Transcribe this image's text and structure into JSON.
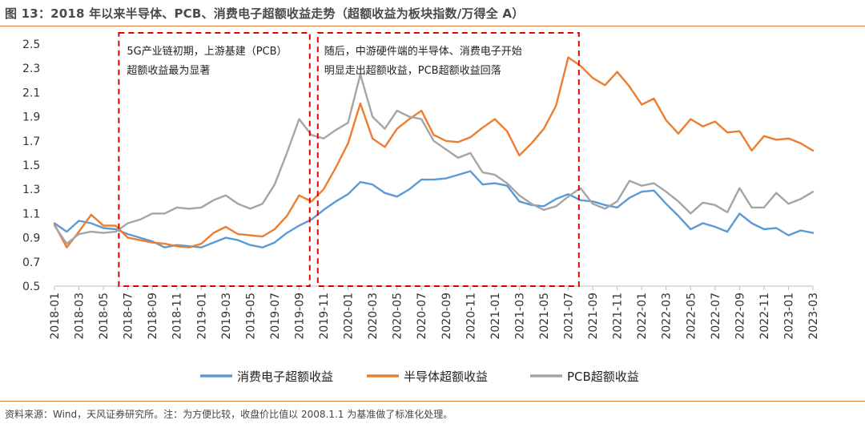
{
  "header": {
    "title": "图 13：2018 年以来半导体、PCB、消费电子超额收益走势（超额收益为板块指数/万得全 A）"
  },
  "footer": {
    "source": "资料来源：Wind，天风证券研究所。注：为方便比较，收盘价比值以 2008.1.1 为基准做了标准化处理。"
  },
  "chart_data": {
    "type": "line",
    "title": "图 13：2018 年以来半导体、PCB、消费电子超额收益走势（超额收益为板块指数/万得全 A）",
    "xlabel": "",
    "ylabel": "",
    "ylim": [
      0.5,
      2.5
    ],
    "yticks": [
      "2.5",
      "2.3",
      "2.1",
      "1.9",
      "1.7",
      "1.5",
      "1.3",
      "1.1",
      "0.9",
      "0.7",
      "0.5"
    ],
    "xticks": [
      "2018-01",
      "2018-03",
      "2018-05",
      "2018-07",
      "2018-09",
      "2018-11",
      "2019-01",
      "2019-03",
      "2019-05",
      "2019-07",
      "2019-09",
      "2019-11",
      "2020-01",
      "2020-03",
      "2020-05",
      "2020-07",
      "2020-09",
      "2020-11",
      "2021-01",
      "2021-03",
      "2021-05",
      "2021-07",
      "2021-09",
      "2021-11",
      "2022-01",
      "2022-03",
      "2022-05",
      "2022-07",
      "2022-09",
      "2022-11",
      "2023-01",
      "2023-03"
    ],
    "grid": false,
    "legend_position": "bottom",
    "annotations": [
      {
        "lines": [
          "5G产业链初期，上游基建（PCB）",
          "超额收益最为显著"
        ],
        "box": [
          "2018-06",
          "2019-10"
        ]
      },
      {
        "lines": [
          "随后，中游硬件端的半导体、消费电子开始",
          "明显走出超额收益，PCB超额收益回落"
        ],
        "box": [
          "2019-10",
          "2021-08"
        ]
      }
    ],
    "series": [
      {
        "name": "消费电子超额收益",
        "color": "#5b9bd5",
        "points": [
          [
            "2018-01",
            1.02
          ],
          [
            "2018-02",
            0.95
          ],
          [
            "2018-03",
            1.04
          ],
          [
            "2018-04",
            1.02
          ],
          [
            "2018-05",
            0.98
          ],
          [
            "2018-06",
            0.97
          ],
          [
            "2018-07",
            0.93
          ],
          [
            "2018-08",
            0.9
          ],
          [
            "2018-09",
            0.87
          ],
          [
            "2018-10",
            0.82
          ],
          [
            "2018-11",
            0.84
          ],
          [
            "2018-12",
            0.83
          ],
          [
            "2019-01",
            0.82
          ],
          [
            "2019-02",
            0.86
          ],
          [
            "2019-03",
            0.9
          ],
          [
            "2019-04",
            0.88
          ],
          [
            "2019-05",
            0.84
          ],
          [
            "2019-06",
            0.82
          ],
          [
            "2019-07",
            0.86
          ],
          [
            "2019-08",
            0.94
          ],
          [
            "2019-09",
            1.0
          ],
          [
            "2019-10",
            1.05
          ],
          [
            "2019-11",
            1.13
          ],
          [
            "2019-12",
            1.2
          ],
          [
            "2020-01",
            1.26
          ],
          [
            "2020-02",
            1.36
          ],
          [
            "2020-03",
            1.34
          ],
          [
            "2020-04",
            1.27
          ],
          [
            "2020-05",
            1.24
          ],
          [
            "2020-06",
            1.3
          ],
          [
            "2020-07",
            1.38
          ],
          [
            "2020-08",
            1.38
          ],
          [
            "2020-09",
            1.39
          ],
          [
            "2020-10",
            1.42
          ],
          [
            "2020-11",
            1.45
          ],
          [
            "2020-12",
            1.34
          ],
          [
            "2021-01",
            1.35
          ],
          [
            "2021-02",
            1.33
          ],
          [
            "2021-03",
            1.2
          ],
          [
            "2021-04",
            1.17
          ],
          [
            "2021-05",
            1.16
          ],
          [
            "2021-06",
            1.22
          ],
          [
            "2021-07",
            1.26
          ],
          [
            "2021-08",
            1.21
          ],
          [
            "2021-09",
            1.2
          ],
          [
            "2021-10",
            1.17
          ],
          [
            "2021-11",
            1.15
          ],
          [
            "2021-12",
            1.23
          ],
          [
            "2022-01",
            1.28
          ],
          [
            "2022-02",
            1.29
          ],
          [
            "2022-03",
            1.18
          ],
          [
            "2022-04",
            1.08
          ],
          [
            "2022-05",
            0.97
          ],
          [
            "2022-06",
            1.02
          ],
          [
            "2022-07",
            0.99
          ],
          [
            "2022-08",
            0.95
          ],
          [
            "2022-09",
            1.1
          ],
          [
            "2022-10",
            1.02
          ],
          [
            "2022-11",
            0.97
          ],
          [
            "2022-12",
            0.98
          ],
          [
            "2023-01",
            0.92
          ],
          [
            "2023-02",
            0.96
          ],
          [
            "2023-03",
            0.94
          ]
        ]
      },
      {
        "name": "半导体超额收益",
        "color": "#ed7d31",
        "points": [
          [
            "2018-01",
            1.01
          ],
          [
            "2018-02",
            0.82
          ],
          [
            "2018-03",
            0.95
          ],
          [
            "2018-04",
            1.09
          ],
          [
            "2018-05",
            1.0
          ],
          [
            "2018-06",
            1.0
          ],
          [
            "2018-07",
            0.9
          ],
          [
            "2018-08",
            0.88
          ],
          [
            "2018-09",
            0.86
          ],
          [
            "2018-10",
            0.85
          ],
          [
            "2018-11",
            0.83
          ],
          [
            "2018-12",
            0.82
          ],
          [
            "2019-01",
            0.85
          ],
          [
            "2019-02",
            0.94
          ],
          [
            "2019-03",
            0.99
          ],
          [
            "2019-04",
            0.93
          ],
          [
            "2019-05",
            0.92
          ],
          [
            "2019-06",
            0.91
          ],
          [
            "2019-07",
            0.97
          ],
          [
            "2019-08",
            1.08
          ],
          [
            "2019-09",
            1.25
          ],
          [
            "2019-10",
            1.2
          ],
          [
            "2019-11",
            1.3
          ],
          [
            "2019-12",
            1.48
          ],
          [
            "2020-01",
            1.68
          ],
          [
            "2020-02",
            2.01
          ],
          [
            "2020-03",
            1.72
          ],
          [
            "2020-04",
            1.65
          ],
          [
            "2020-05",
            1.8
          ],
          [
            "2020-06",
            1.88
          ],
          [
            "2020-07",
            1.95
          ],
          [
            "2020-08",
            1.75
          ],
          [
            "2020-09",
            1.7
          ],
          [
            "2020-10",
            1.69
          ],
          [
            "2020-11",
            1.73
          ],
          [
            "2020-12",
            1.81
          ],
          [
            "2021-01",
            1.88
          ],
          [
            "2021-02",
            1.78
          ],
          [
            "2021-03",
            1.58
          ],
          [
            "2021-04",
            1.68
          ],
          [
            "2021-05",
            1.8
          ],
          [
            "2021-06",
            1.99
          ],
          [
            "2021-07",
            2.39
          ],
          [
            "2021-08",
            2.32
          ],
          [
            "2021-09",
            2.22
          ],
          [
            "2021-10",
            2.16
          ],
          [
            "2021-11",
            2.27
          ],
          [
            "2021-12",
            2.15
          ],
          [
            "2022-01",
            2.0
          ],
          [
            "2022-02",
            2.05
          ],
          [
            "2022-03",
            1.87
          ],
          [
            "2022-04",
            1.76
          ],
          [
            "2022-05",
            1.88
          ],
          [
            "2022-06",
            1.82
          ],
          [
            "2022-07",
            1.86
          ],
          [
            "2022-08",
            1.77
          ],
          [
            "2022-09",
            1.78
          ],
          [
            "2022-10",
            1.62
          ],
          [
            "2022-11",
            1.74
          ],
          [
            "2022-12",
            1.71
          ],
          [
            "2023-01",
            1.72
          ],
          [
            "2023-02",
            1.68
          ],
          [
            "2023-03",
            1.62
          ]
        ]
      },
      {
        "name": "PCB超额收益",
        "color": "#a5a5a5",
        "points": [
          [
            "2018-01",
            1.0
          ],
          [
            "2018-02",
            0.85
          ],
          [
            "2018-03",
            0.93
          ],
          [
            "2018-04",
            0.95
          ],
          [
            "2018-05",
            0.94
          ],
          [
            "2018-06",
            0.95
          ],
          [
            "2018-07",
            1.02
          ],
          [
            "2018-08",
            1.05
          ],
          [
            "2018-09",
            1.1
          ],
          [
            "2018-10",
            1.1
          ],
          [
            "2018-11",
            1.15
          ],
          [
            "2018-12",
            1.14
          ],
          [
            "2019-01",
            1.15
          ],
          [
            "2019-02",
            1.21
          ],
          [
            "2019-03",
            1.25
          ],
          [
            "2019-04",
            1.18
          ],
          [
            "2019-05",
            1.14
          ],
          [
            "2019-06",
            1.18
          ],
          [
            "2019-07",
            1.34
          ],
          [
            "2019-08",
            1.6
          ],
          [
            "2019-09",
            1.88
          ],
          [
            "2019-10",
            1.75
          ],
          [
            "2019-11",
            1.72
          ],
          [
            "2019-12",
            1.79
          ],
          [
            "2020-01",
            1.85
          ],
          [
            "2020-02",
            2.25
          ],
          [
            "2020-03",
            1.9
          ],
          [
            "2020-04",
            1.8
          ],
          [
            "2020-05",
            1.95
          ],
          [
            "2020-06",
            1.9
          ],
          [
            "2020-07",
            1.88
          ],
          [
            "2020-08",
            1.7
          ],
          [
            "2020-09",
            1.63
          ],
          [
            "2020-10",
            1.56
          ],
          [
            "2020-11",
            1.6
          ],
          [
            "2020-12",
            1.44
          ],
          [
            "2021-01",
            1.42
          ],
          [
            "2021-02",
            1.35
          ],
          [
            "2021-03",
            1.25
          ],
          [
            "2021-04",
            1.18
          ],
          [
            "2021-05",
            1.13
          ],
          [
            "2021-06",
            1.16
          ],
          [
            "2021-07",
            1.24
          ],
          [
            "2021-08",
            1.31
          ],
          [
            "2021-09",
            1.18
          ],
          [
            "2021-10",
            1.14
          ],
          [
            "2021-11",
            1.2
          ],
          [
            "2021-12",
            1.37
          ],
          [
            "2022-01",
            1.33
          ],
          [
            "2022-02",
            1.35
          ],
          [
            "2022-03",
            1.28
          ],
          [
            "2022-04",
            1.2
          ],
          [
            "2022-05",
            1.1
          ],
          [
            "2022-06",
            1.19
          ],
          [
            "2022-07",
            1.17
          ],
          [
            "2022-08",
            1.11
          ],
          [
            "2022-09",
            1.31
          ],
          [
            "2022-10",
            1.15
          ],
          [
            "2022-11",
            1.15
          ],
          [
            "2022-12",
            1.27
          ],
          [
            "2023-01",
            1.18
          ],
          [
            "2023-02",
            1.22
          ],
          [
            "2023-03",
            1.28
          ]
        ]
      }
    ]
  }
}
